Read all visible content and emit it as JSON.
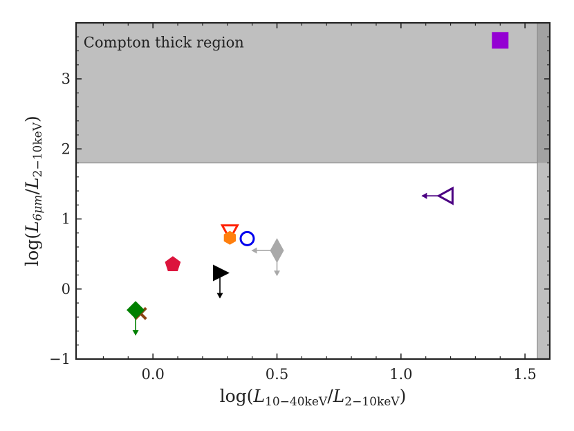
{
  "chart_data": {
    "type": "scatter",
    "xlabel": "log(L10–40keV/L2–10keV)",
    "ylabel": "log(L6μm/L2–10keV)",
    "xlabel_parts": {
      "pre": "log(",
      "L1": "L",
      "sub1": "10−40keV",
      "slash": "/",
      "L2": "L",
      "sub2": "2−10keV",
      "post": ")"
    },
    "ylabel_parts": {
      "pre": "log(",
      "L1": "L",
      "sub1": "6μm",
      "slash": "/",
      "L2": "L",
      "sub2": "2−10keV",
      "post": ")"
    },
    "xlim": [
      -0.31,
      1.6
    ],
    "ylim": [
      -1.0,
      3.8
    ],
    "xticks": [
      0.0,
      0.5,
      1.0,
      1.5
    ],
    "xtick_labels": [
      "0.0",
      "0.5",
      "1.0",
      "1.5"
    ],
    "yticks": [
      -1,
      0,
      1,
      2,
      3
    ],
    "ytick_labels": [
      "−1",
      "0",
      "1",
      "2",
      "3"
    ],
    "shaded_regions": [
      {
        "name": "compton-thick-horizontal",
        "y_from": 1.8,
        "y_to": 3.8,
        "color": "#bfbfbf"
      },
      {
        "name": "compton-thick-vertical",
        "x_from": 1.55,
        "x_to": 1.6,
        "color": "#bfbfbf"
      }
    ],
    "annotation": "Compton thick region",
    "points": [
      {
        "name": "purple-square",
        "x": 1.4,
        "y": 3.55,
        "marker": "square",
        "color": "#9400d3",
        "filled": true
      },
      {
        "name": "indigo-triangle-left",
        "x": 1.18,
        "y": 1.33,
        "marker": "triangle-left",
        "color": "#4b0082",
        "filled": false,
        "arrow": "left"
      },
      {
        "name": "red-triangle-down",
        "x": 0.31,
        "y": 0.8,
        "marker": "triangle-down",
        "color": "#ff2200",
        "filled": false
      },
      {
        "name": "orange-hexagon",
        "x": 0.31,
        "y": 0.73,
        "marker": "hexagon",
        "color": "#ff7f0e",
        "filled": true
      },
      {
        "name": "blue-circle",
        "x": 0.38,
        "y": 0.72,
        "marker": "circle",
        "color": "#0000ee",
        "filled": false
      },
      {
        "name": "gray-thin-diamond",
        "x": 0.5,
        "y": 0.55,
        "marker": "thin-diamond",
        "color": "#a9a9a9",
        "filled": true,
        "arrow": "left-down"
      },
      {
        "name": "crimson-pentagon",
        "x": 0.08,
        "y": 0.35,
        "marker": "pentagon",
        "color": "#dc143c",
        "filled": true
      },
      {
        "name": "black-triangle-right",
        "x": 0.27,
        "y": 0.23,
        "marker": "triangle-right",
        "color": "#000000",
        "filled": true,
        "arrow": "down"
      },
      {
        "name": "brown-x",
        "x": -0.05,
        "y": -0.35,
        "marker": "x",
        "color": "#8b4513",
        "filled": true
      },
      {
        "name": "green-diamond",
        "x": -0.07,
        "y": -0.3,
        "marker": "diamond",
        "color": "#008000",
        "filled": true,
        "arrow": "down"
      }
    ]
  }
}
